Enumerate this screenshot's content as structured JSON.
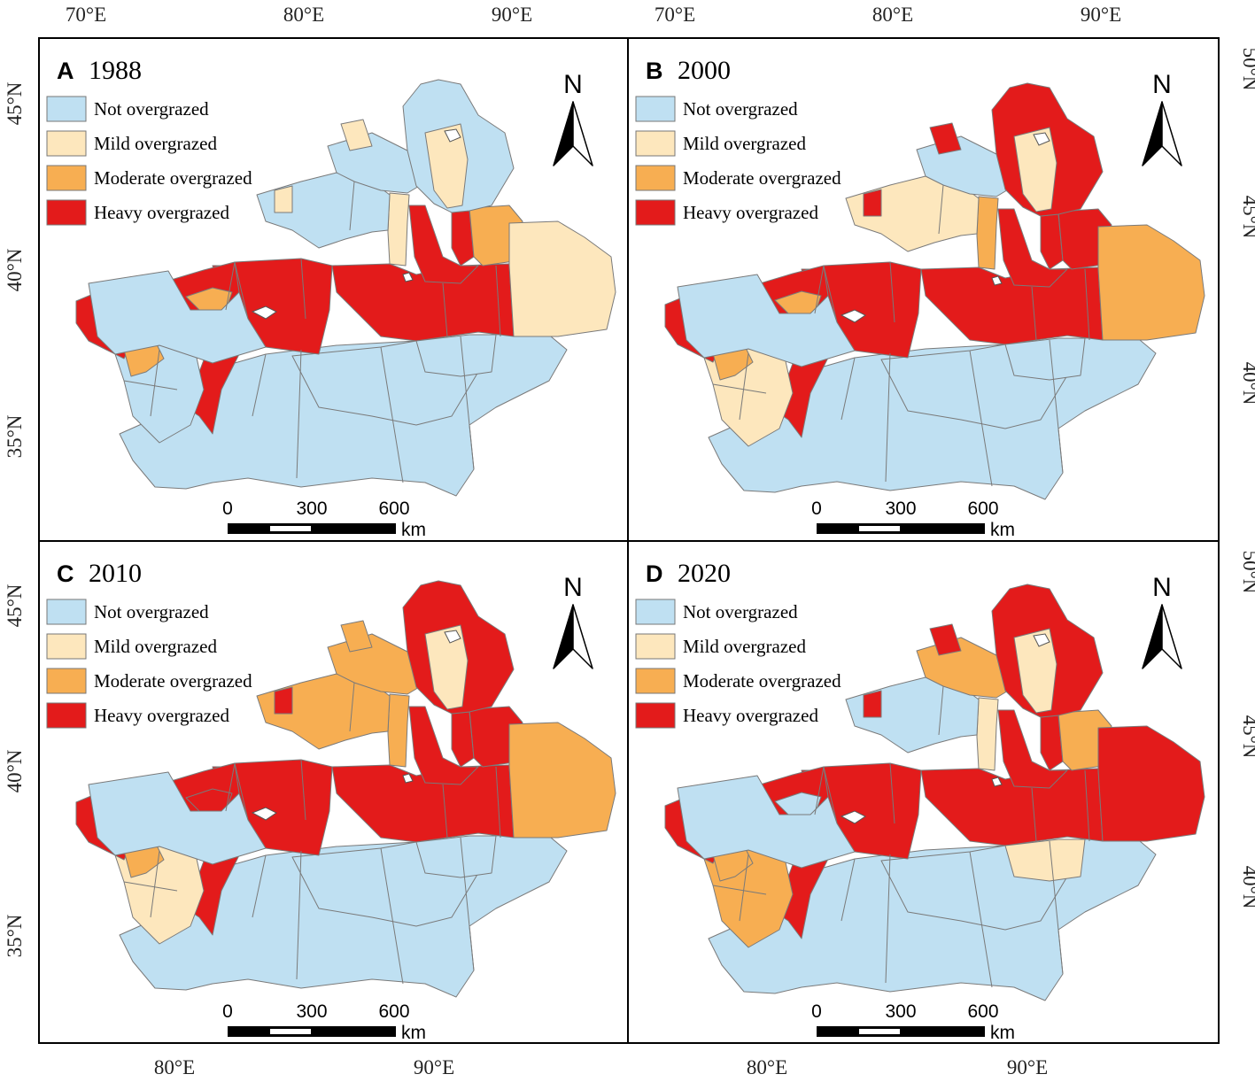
{
  "colors": {
    "not": "#bfe0f2",
    "mild": "#fde7bd",
    "moderate": "#f7ae52",
    "heavy": "#e31b1b",
    "boundary": "#7a7a7a",
    "frame": "#000000"
  },
  "axes": {
    "top_lon": [
      "70°E",
      "80°E",
      "90°E",
      "70°E",
      "80°E",
      "90°E"
    ],
    "bottom_lon": [
      "80°E",
      "90°E",
      "80°E",
      "90°E"
    ],
    "left_lat": [
      "45°N",
      "40°N",
      "35°N",
      "45°N",
      "40°N",
      "35°N"
    ],
    "right_lat": [
      "50°N",
      "45°N",
      "40°N",
      "50°N",
      "45°N",
      "40°N"
    ]
  },
  "legend": [
    {
      "key": "not",
      "label": "Not overgrazed"
    },
    {
      "key": "mild",
      "label": "Mild overgrazed"
    },
    {
      "key": "moderate",
      "label": "Moderate overgrazed"
    },
    {
      "key": "heavy",
      "label": "Heavy overgrazed"
    }
  ],
  "north_label": "N",
  "scale": {
    "ticks": [
      "0",
      "300",
      "600"
    ],
    "unit": "km"
  },
  "panels": [
    {
      "letter": "A",
      "year": "1988",
      "regions": {
        "altay": "not",
        "altay_west": "mild",
        "tacheng": "not",
        "tacheng_se": "mild",
        "ili": "not",
        "bortala": "mild",
        "changji_west": "mild",
        "changji_mid": "heavy",
        "changji_east": "moderate",
        "urumqi_turpan": "heavy",
        "hami": "mild",
        "bayingol_n": "heavy",
        "bayingol_s": "not",
        "aksu": "heavy",
        "aksu_mid": "moderate",
        "kashgar_n": "heavy",
        "kashgar_s": "not",
        "kizilsu": "heavy",
        "kizilsu_s": "moderate",
        "hotan_w": "heavy",
        "hotan": "not",
        "kunlun": "not"
      }
    },
    {
      "letter": "B",
      "year": "2000",
      "regions": {
        "altay": "heavy",
        "altay_west": "mild",
        "tacheng": "not",
        "tacheng_se": "heavy",
        "ili": "mild",
        "bortala": "heavy",
        "changji_west": "moderate",
        "changji_mid": "heavy",
        "changji_east": "heavy",
        "urumqi_turpan": "heavy",
        "hami": "moderate",
        "bayingol_n": "heavy",
        "bayingol_s": "not",
        "aksu": "heavy",
        "aksu_mid": "moderate",
        "kashgar_n": "heavy",
        "kashgar_s": "mild",
        "kizilsu": "heavy",
        "kizilsu_s": "moderate",
        "hotan_w": "heavy",
        "hotan": "not",
        "kunlun": "not"
      }
    },
    {
      "letter": "C",
      "year": "2010",
      "regions": {
        "altay": "heavy",
        "altay_west": "mild",
        "tacheng": "moderate",
        "tacheng_se": "moderate",
        "ili": "moderate",
        "bortala": "heavy",
        "changji_west": "moderate",
        "changji_mid": "heavy",
        "changji_east": "heavy",
        "urumqi_turpan": "heavy",
        "hami": "moderate",
        "bayingol_n": "heavy",
        "bayingol_s": "not",
        "aksu": "heavy",
        "aksu_mid": "heavy",
        "kashgar_n": "heavy",
        "kashgar_s": "mild",
        "kizilsu": "heavy",
        "kizilsu_s": "moderate",
        "hotan_w": "heavy",
        "hotan": "not",
        "kunlun": "not"
      }
    },
    {
      "letter": "D",
      "year": "2020",
      "regions": {
        "altay": "heavy",
        "altay_west": "mild",
        "tacheng": "moderate",
        "tacheng_se": "heavy",
        "ili": "not",
        "bortala": "heavy",
        "changji_west": "mild",
        "changji_mid": "heavy",
        "changji_east": "moderate",
        "urumqi_turpan": "heavy",
        "hami": "heavy",
        "bayingol_n": "heavy",
        "bayingol_s": "mild",
        "aksu": "heavy",
        "aksu_mid": "not",
        "kashgar_n": "heavy",
        "kashgar_s": "moderate",
        "kizilsu": "heavy",
        "kizilsu_s": "moderate",
        "hotan_w": "heavy",
        "hotan": "not",
        "kunlun": "not"
      }
    }
  ]
}
